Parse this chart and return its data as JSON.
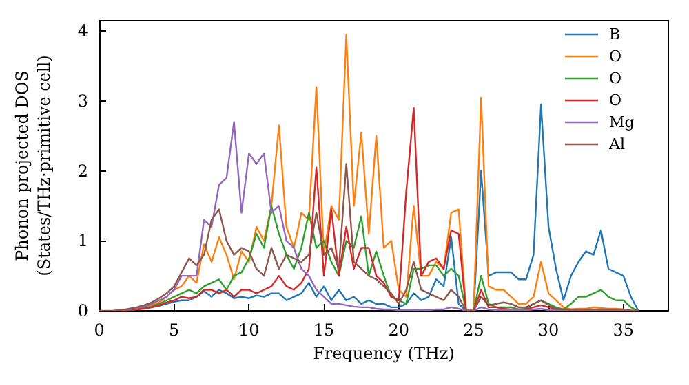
{
  "chart_data": {
    "type": "line",
    "xlabel": "Frequency (THz)",
    "ylabel": "Phonon projected DOS\n(States/THz·primitive cell)",
    "x": [
      0,
      0.5,
      1,
      1.5,
      2,
      2.5,
      3,
      3.5,
      4,
      4.5,
      5,
      5.5,
      6,
      6.5,
      7,
      7.5,
      8,
      8.5,
      9,
      9.5,
      10,
      10.5,
      11,
      11.5,
      12,
      12.5,
      13,
      13.5,
      14,
      14.5,
      15,
      15.5,
      16,
      16.5,
      17,
      17.5,
      18,
      18.5,
      19,
      19.5,
      20,
      20.5,
      21,
      21.5,
      22,
      22.5,
      23,
      23.5,
      24,
      24.5,
      25,
      25.5,
      26,
      26.5,
      27,
      27.5,
      28,
      28.5,
      29,
      29.5,
      30,
      30.5,
      31,
      31.5,
      32,
      32.5,
      33,
      33.5,
      34,
      34.5,
      35,
      35.5,
      36
    ],
    "series": [
      {
        "name": "B",
        "color": "#1f77b4",
        "values": [
          null,
          null,
          null,
          null,
          null,
          null,
          0.03,
          0.05,
          0.07,
          0.1,
          0.13,
          0.15,
          0.15,
          0.2,
          0.28,
          0.2,
          0.3,
          0.25,
          0.18,
          0.2,
          0.18,
          0.22,
          0.2,
          0.25,
          0.25,
          0.15,
          0.2,
          0.25,
          0.4,
          0.2,
          0.35,
          0.15,
          0.3,
          0.15,
          0.2,
          0.1,
          0.15,
          0.1,
          0.1,
          0.05,
          0.05,
          0.1,
          0.25,
          0.15,
          0.2,
          0.45,
          0.35,
          1.05,
          0.1,
          0,
          0,
          2.0,
          0.5,
          0.55,
          0.55,
          0.55,
          0.45,
          0.45,
          0.8,
          2.95,
          1.2,
          0.6,
          0.15,
          0.5,
          0.7,
          0.85,
          0.8,
          1.15,
          0.6,
          0.55,
          0.5,
          0.2,
          0
        ]
      },
      {
        "name": "O",
        "color": "#ff7f0e",
        "values": [
          null,
          null,
          null,
          null,
          null,
          0.03,
          0.05,
          0.08,
          0.12,
          0.2,
          0.3,
          0.35,
          0.5,
          0.4,
          0.95,
          0.7,
          1.05,
          0.8,
          0.45,
          0.85,
          0.7,
          1.2,
          1.0,
          1.5,
          2.65,
          1.2,
          0.9,
          1.4,
          1.3,
          3.2,
          0.8,
          1.5,
          1.3,
          3.95,
          1.5,
          2.55,
          1.1,
          2.5,
          0.9,
          1.0,
          0.3,
          0.2,
          1.5,
          0.5,
          0.5,
          0.7,
          0.6,
          1.4,
          1.45,
          0,
          0,
          3.05,
          0.35,
          0.3,
          0.3,
          0.2,
          0.1,
          0.1,
          0.2,
          0.7,
          0.25,
          0.15,
          0.05,
          0.02,
          0.03,
          0.03,
          0.05,
          0.04,
          0.03,
          0.03,
          0.02,
          0,
          0
        ]
      },
      {
        "name": "O",
        "color": "#2ca02c",
        "values": [
          null,
          null,
          null,
          null,
          0.01,
          0.02,
          0.04,
          0.06,
          0.1,
          0.15,
          0.2,
          0.25,
          0.3,
          0.25,
          0.35,
          0.4,
          0.45,
          0.3,
          0.5,
          0.55,
          0.75,
          1.1,
          0.9,
          1.5,
          1.1,
          0.8,
          0.6,
          0.9,
          1.4,
          0.9,
          1.0,
          0.7,
          0.5,
          1.0,
          0.9,
          1.35,
          0.5,
          0.85,
          0.5,
          0.2,
          0.15,
          0.1,
          0.6,
          0.6,
          0.65,
          0.65,
          0.5,
          0.6,
          0.5,
          0,
          0,
          0.5,
          0.1,
          0.05,
          0.05,
          0.05,
          0.02,
          0.03,
          0.1,
          0.15,
          0.1,
          0.05,
          0.02,
          0.1,
          0.2,
          0.2,
          0.25,
          0.3,
          0.2,
          0.15,
          0.15,
          0.05,
          0
        ]
      },
      {
        "name": "O",
        "color": "#d62728",
        "values": [
          null,
          null,
          0,
          0,
          0.01,
          0.02,
          0.03,
          0.05,
          0.08,
          0.12,
          0.15,
          0.2,
          0.18,
          0.2,
          0.3,
          0.3,
          0.25,
          0.3,
          0.2,
          0.3,
          0.3,
          0.25,
          0.3,
          0.35,
          0.5,
          0.35,
          0.3,
          0.4,
          0.6,
          2.05,
          0.5,
          1.45,
          0.5,
          1.2,
          0.6,
          0.9,
          0.9,
          0.5,
          0.4,
          0.2,
          0.15,
          1.7,
          2.9,
          0.5,
          0.7,
          0.75,
          0.6,
          1.15,
          1.1,
          0,
          0,
          0.3,
          0.05,
          0.05,
          0.03,
          0.02,
          0.02,
          0.02,
          0.05,
          0.08,
          0.05,
          0.02,
          0.01,
          0.01,
          0.01,
          0.01,
          0.01,
          0.01,
          0.01,
          0.01,
          0.01,
          0,
          0
        ]
      },
      {
        "name": "Mg",
        "color": "#9467bd",
        "values": [
          null,
          null,
          0,
          0.01,
          0.02,
          0.04,
          0.06,
          0.1,
          0.15,
          0.2,
          0.3,
          0.5,
          0.5,
          0.5,
          1.3,
          1.2,
          1.8,
          1.9,
          2.7,
          1.4,
          2.25,
          2.1,
          2.25,
          1.4,
          1.5,
          1.0,
          0.9,
          0.6,
          0.5,
          0.3,
          0.2,
          0.1,
          0.1,
          0.08,
          0.06,
          0.05,
          0.05,
          0.03,
          0.02,
          0.02,
          0.01,
          0.01,
          0.01,
          0.01,
          0.01,
          0.02,
          0.02,
          0.05,
          0.03,
          0,
          0,
          0.05,
          0.02,
          0.01,
          0.01,
          0.01,
          0.01,
          0.01,
          0.02,
          0.03,
          0.01,
          0.01,
          0.01,
          0.01,
          0.01,
          0.01,
          0.01,
          0.01,
          0.01,
          0.01,
          0.01,
          0,
          0
        ]
      },
      {
        "name": "Al",
        "color": "#8c564b",
        "values": [
          0,
          0,
          0,
          0.01,
          0.03,
          0.05,
          0.08,
          0.12,
          0.18,
          0.25,
          0.35,
          0.55,
          0.75,
          0.65,
          0.8,
          1.3,
          1.45,
          1.0,
          0.8,
          0.9,
          0.85,
          0.6,
          0.5,
          0.9,
          0.6,
          0.8,
          0.75,
          0.7,
          0.8,
          1.4,
          0.8,
          0.9,
          0.6,
          2.1,
          0.7,
          0.6,
          0.5,
          0.45,
          0.35,
          0.25,
          0.1,
          0.3,
          0.7,
          0.3,
          0.25,
          0.2,
          0.15,
          0.3,
          0.2,
          0,
          0,
          0.2,
          0.08,
          0.1,
          0.12,
          0.1,
          0.05,
          0.05,
          0.1,
          0.15,
          0.08,
          0.03,
          0.02,
          0.02,
          0.02,
          0.02,
          0.02,
          0.02,
          0.02,
          0.02,
          0.02,
          0,
          0
        ]
      }
    ],
    "xlim": [
      0,
      38
    ],
    "xticks": [
      0,
      5,
      10,
      15,
      20,
      25,
      30,
      35
    ],
    "ylim": [
      0,
      4.15
    ],
    "yticks": [
      0,
      1,
      2,
      3,
      4
    ],
    "grid": false,
    "legend": "top right",
    "marker": "none",
    "line_style": "solid"
  }
}
